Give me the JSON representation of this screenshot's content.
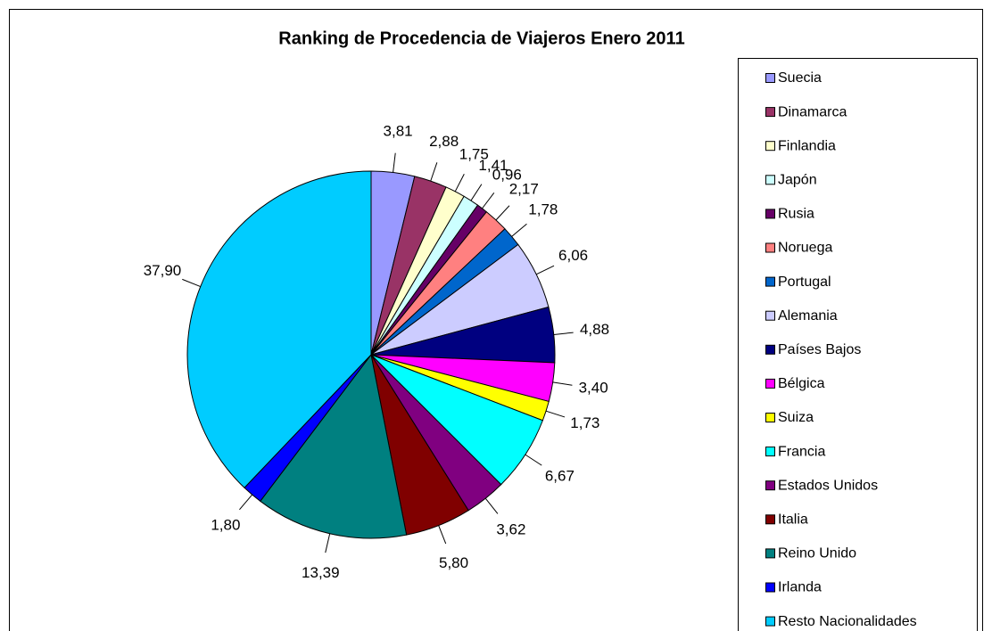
{
  "chart_data": {
    "type": "pie",
    "title": "Ranking de Procedencia de Viajeros Enero 2011",
    "categories": [
      "Suecia",
      "Dinamarca",
      "Finlandia",
      "Japón",
      "Rusia",
      "Noruega",
      "Portugal",
      "Alemania",
      "Países Bajos",
      "Bélgica",
      "Suiza",
      "Francia",
      "Estados Unidos",
      "Italia",
      "Reino Unido",
      "Irlanda",
      "Resto Nacionalidades"
    ],
    "values": [
      3.81,
      2.88,
      1.75,
      1.41,
      0.96,
      2.17,
      1.78,
      6.06,
      4.88,
      3.4,
      1.73,
      6.67,
      3.62,
      5.8,
      13.39,
      1.8,
      37.9
    ],
    "value_labels": [
      "3,81",
      "2,88",
      "1,75",
      "1,41",
      "0,96",
      "2,17",
      "1,78",
      "6,06",
      "4,88",
      "3,40",
      "1,73",
      "6,67",
      "3,62",
      "5,80",
      "13,39",
      "1,80",
      "37,90"
    ],
    "colors": [
      "#9999ff",
      "#993366",
      "#ffffcc",
      "#ccffff",
      "#660066",
      "#ff8080",
      "#0066cc",
      "#ccccff",
      "#000080",
      "#ff00ff",
      "#ffff00",
      "#00ffff",
      "#800080",
      "#800000",
      "#008080",
      "#0000ff",
      "#00ccff"
    ],
    "legend": "right"
  }
}
